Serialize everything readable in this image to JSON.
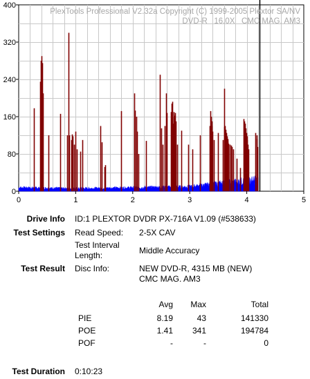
{
  "chart_data": {
    "type": "bar",
    "title": "PlexTools Professional V2.32a Copyright (C) 1999-2005 Plextor SA/NV",
    "subtitle": "DVD-R   16.0X   CMC MAG. AM3",
    "xlabel": "",
    "ylabel": "",
    "xlim": [
      0,
      5
    ],
    "ylim": [
      0,
      400
    ],
    "x_ticks": [
      "0",
      "1",
      "2",
      "3",
      "4",
      "5"
    ],
    "y_ticks": [
      "0",
      "80",
      "160",
      "240",
      "320",
      "400"
    ],
    "grid": true,
    "end_marker_x": 4.22,
    "series": [
      {
        "color": "#800000",
        "points": [
          [
            0.27,
            178
          ],
          [
            0.38,
            235
          ],
          [
            0.39,
            280
          ],
          [
            0.4,
            290
          ],
          [
            0.41,
            275
          ],
          [
            0.42,
            210
          ],
          [
            0.52,
            120
          ],
          [
            0.73,
            166
          ],
          [
            0.85,
            120
          ],
          [
            0.87,
            340
          ],
          [
            0.88,
            120
          ],
          [
            0.92,
            110
          ],
          [
            0.93,
            122
          ],
          [
            0.95,
            118
          ],
          [
            0.97,
            100
          ],
          [
            1.0,
            128
          ],
          [
            1.02,
            90
          ],
          [
            1.08,
            85
          ],
          [
            1.12,
            110
          ],
          [
            1.43,
            140
          ],
          [
            1.46,
            105
          ],
          [
            1.5,
            52
          ],
          [
            1.52,
            56
          ],
          [
            1.8,
            172
          ],
          [
            2.03,
            210
          ],
          [
            2.04,
            173
          ],
          [
            2.06,
            160
          ],
          [
            2.07,
            128
          ],
          [
            2.1,
            80
          ],
          [
            2.23,
            108
          ],
          [
            2.48,
            250
          ],
          [
            2.5,
            135
          ],
          [
            2.53,
            100
          ],
          [
            2.56,
            140
          ],
          [
            2.58,
            210
          ],
          [
            2.6,
            168
          ],
          [
            2.67,
            170
          ],
          [
            2.68,
            188
          ],
          [
            2.69,
            160
          ],
          [
            2.7,
            192
          ],
          [
            2.71,
            145
          ],
          [
            2.72,
            170
          ],
          [
            2.73,
            162
          ],
          [
            2.74,
            168
          ],
          [
            2.75,
            150
          ],
          [
            2.78,
            100
          ],
          [
            2.85,
            130
          ],
          [
            2.97,
            100
          ],
          [
            3.05,
            90
          ],
          [
            3.18,
            120
          ],
          [
            3.35,
            140
          ],
          [
            3.36,
            172
          ],
          [
            3.37,
            160
          ],
          [
            3.38,
            150
          ],
          [
            3.39,
            140
          ],
          [
            3.4,
            128
          ],
          [
            3.42,
            110
          ],
          [
            3.5,
            125
          ],
          [
            3.58,
            110
          ],
          [
            3.6,
            220
          ],
          [
            3.61,
            138
          ],
          [
            3.62,
            140
          ],
          [
            3.63,
            132
          ],
          [
            3.64,
            125
          ],
          [
            3.65,
            118
          ],
          [
            3.66,
            112
          ],
          [
            3.67,
            106
          ],
          [
            3.68,
            102
          ],
          [
            3.7,
            100
          ],
          [
            3.72,
            98
          ],
          [
            3.74,
            95
          ],
          [
            3.76,
            90
          ],
          [
            3.82,
            70
          ],
          [
            3.88,
            50
          ],
          [
            3.95,
            155
          ],
          [
            3.96,
            150
          ],
          [
            3.97,
            145
          ],
          [
            3.98,
            135
          ],
          [
            3.99,
            125
          ],
          [
            4.0,
            118
          ],
          [
            4.01,
            110
          ],
          [
            4.02,
            100
          ],
          [
            4.03,
            90
          ],
          [
            4.15,
            125
          ],
          [
            4.17,
            112
          ],
          [
            4.18,
            120
          ],
          [
            4.19,
            95
          ]
        ]
      },
      {
        "color": "#0000ff",
        "baseline_profile": [
          [
            0.0,
            8
          ],
          [
            0.5,
            7
          ],
          [
            1.0,
            6
          ],
          [
            1.5,
            7
          ],
          [
            2.0,
            8
          ],
          [
            2.5,
            9
          ],
          [
            3.0,
            10
          ],
          [
            3.3,
            14
          ],
          [
            3.6,
            18
          ],
          [
            3.9,
            22
          ],
          [
            4.2,
            26
          ]
        ]
      }
    ]
  },
  "info": {
    "drive_label": "Drive Info",
    "drive_value": "ID:1 PLEXTOR DVDR PX-716A V1.09 (#538633)",
    "settings_label": "Test Settings",
    "read_speed_label": "Read Speed:",
    "read_speed_value": "2-5X CAV",
    "interval_label_1": "Test Interval",
    "interval_label_2": "Length:",
    "interval_value": "Middle Accuracy",
    "result_label": "Test Result",
    "disc_label": "Disc Info:",
    "disc_value_1": "NEW DVD-R, 4315 MB (NEW)",
    "disc_value_2": "CMC MAG. AM3",
    "duration_label": "Test Duration",
    "duration_value": "0:10:23"
  },
  "stats": {
    "headers": {
      "avg": "Avg",
      "max": "Max",
      "total": "Total"
    },
    "rows": [
      {
        "name": "PIE",
        "avg": "8.19",
        "max": "43",
        "total": "141330"
      },
      {
        "name": "POE",
        "avg": "1.41",
        "max": "341",
        "total": "194784"
      },
      {
        "name": "POF",
        "avg": "-",
        "max": "-",
        "total": "0"
      }
    ]
  }
}
